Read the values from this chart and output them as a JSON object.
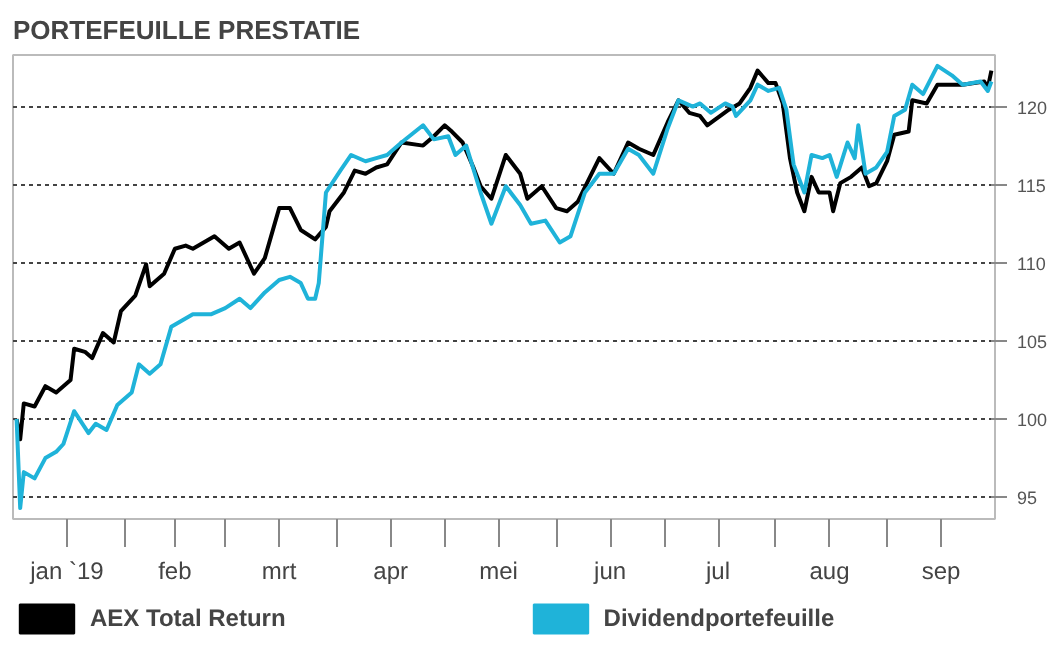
{
  "chart_data": {
    "type": "line",
    "title": "PORTEFEUILLE PRESTATIE",
    "xlim": [
      "2019-01-01",
      "2019-10-01"
    ],
    "ylim": [
      93.6,
      123.3
    ],
    "xticks": [
      {
        "value": "2019-01-16",
        "label": "jan `19"
      },
      {
        "value": "2019-02-01",
        "label": null
      },
      {
        "value": "2019-02-15",
        "label": "feb"
      },
      {
        "value": "2019-03-01",
        "label": null
      },
      {
        "value": "2019-03-16",
        "label": "mrt"
      },
      {
        "value": "2019-04-01",
        "label": null
      },
      {
        "value": "2019-04-16",
        "label": "apr"
      },
      {
        "value": "2019-05-01",
        "label": null
      },
      {
        "value": "2019-05-16",
        "label": "mei"
      },
      {
        "value": "2019-06-01",
        "label": null
      },
      {
        "value": "2019-06-16",
        "label": "jun"
      },
      {
        "value": "2019-07-01",
        "label": null
      },
      {
        "value": "2019-07-16",
        "label": "jul"
      },
      {
        "value": "2019-08-01",
        "label": null
      },
      {
        "value": "2019-08-16",
        "label": "aug"
      },
      {
        "value": "2019-09-01",
        "label": null
      },
      {
        "value": "2019-09-16",
        "label": "sep"
      }
    ],
    "yticks": [
      95,
      100,
      105,
      110,
      115,
      120
    ],
    "grid": "y",
    "legend": "bottom",
    "marker": "none",
    "line_style": "solid",
    "series": [
      {
        "name": "AEX Total Return",
        "color": "#000000",
        "x": [
          "2019-01-02",
          "2019-01-03",
          "2019-01-04",
          "2019-01-07",
          "2019-01-10",
          "2019-01-13",
          "2019-01-17",
          "2019-01-18",
          "2019-01-21",
          "2019-01-23",
          "2019-01-26",
          "2019-01-29",
          "2019-01-31",
          "2019-02-04",
          "2019-02-07",
          "2019-02-08",
          "2019-02-12",
          "2019-02-15",
          "2019-02-18",
          "2019-02-20",
          "2019-02-26",
          "2019-03-02",
          "2019-03-05",
          "2019-03-09",
          "2019-03-12",
          "2019-03-16",
          "2019-03-19",
          "2019-03-22",
          "2019-03-26",
          "2019-03-29",
          "2019-03-30",
          "2019-04-03",
          "2019-04-06",
          "2019-04-09",
          "2019-04-12",
          "2019-04-15",
          "2019-04-19",
          "2019-04-25",
          "2019-04-28",
          "2019-05-01",
          "2019-05-03",
          "2019-05-06",
          "2019-05-09",
          "2019-05-11",
          "2019-05-14",
          "2019-05-18",
          "2019-05-22",
          "2019-05-24",
          "2019-05-28",
          "2019-06-01",
          "2019-06-04",
          "2019-06-07",
          "2019-06-10",
          "2019-06-13",
          "2019-06-17",
          "2019-06-21",
          "2019-06-24",
          "2019-06-28",
          "2019-07-02",
          "2019-07-05",
          "2019-07-08",
          "2019-07-11",
          "2019-07-13",
          "2019-07-19",
          "2019-07-22",
          "2019-07-25",
          "2019-07-27",
          "2019-07-30",
          "2019-08-01",
          "2019-08-03",
          "2019-08-05",
          "2019-08-07",
          "2019-08-09",
          "2019-08-11",
          "2019-08-13",
          "2019-08-16",
          "2019-08-17",
          "2019-08-19",
          "2019-08-22",
          "2019-08-25",
          "2019-08-27",
          "2019-08-29",
          "2019-09-01",
          "2019-09-03",
          "2019-09-07",
          "2019-09-08",
          "2019-09-12",
          "2019-09-15",
          "2019-09-22",
          "2019-09-28",
          "2019-09-29",
          "2019-09-30"
        ],
        "values": [
          100.0,
          98.7,
          101.0,
          100.8,
          102.1,
          101.7,
          102.5,
          104.5,
          104.3,
          103.9,
          105.5,
          104.9,
          106.9,
          107.9,
          109.9,
          108.5,
          109.3,
          110.9,
          111.1,
          110.9,
          111.7,
          110.9,
          111.3,
          109.3,
          110.3,
          113.5,
          113.5,
          112.1,
          111.5,
          112.3,
          113.3,
          114.5,
          115.9,
          115.7,
          116.1,
          116.3,
          117.7,
          117.5,
          118.1,
          118.8,
          118.4,
          117.7,
          116.1,
          114.9,
          114.1,
          116.9,
          115.7,
          114.1,
          114.9,
          113.5,
          113.3,
          113.9,
          115.3,
          116.7,
          115.7,
          117.7,
          117.3,
          116.9,
          119.0,
          120.4,
          119.6,
          119.4,
          118.8,
          119.8,
          120.2,
          121.2,
          122.3,
          121.5,
          121.5,
          120.2,
          116.7,
          114.5,
          113.3,
          115.5,
          114.5,
          114.5,
          113.3,
          115.1,
          115.5,
          116.1,
          114.9,
          115.1,
          116.5,
          118.2,
          118.4,
          120.4,
          120.2,
          121.4,
          121.4,
          121.6,
          121.2,
          122.3
        ]
      },
      {
        "name": "Dividendportefeuille",
        "color": "#1fb3d9",
        "x": [
          "2019-01-02",
          "2019-01-03",
          "2019-01-04",
          "2019-01-07",
          "2019-01-10",
          "2019-01-13",
          "2019-01-15",
          "2019-01-18",
          "2019-01-22",
          "2019-01-24",
          "2019-01-27",
          "2019-01-30",
          "2019-02-03",
          "2019-02-05",
          "2019-02-08",
          "2019-02-11",
          "2019-02-14",
          "2019-02-17",
          "2019-02-20",
          "2019-02-25",
          "2019-03-01",
          "2019-03-05",
          "2019-03-08",
          "2019-03-12",
          "2019-03-16",
          "2019-03-19",
          "2019-03-22",
          "2019-03-24",
          "2019-03-26",
          "2019-03-27",
          "2019-03-29",
          "2019-04-02",
          "2019-04-05",
          "2019-04-09",
          "2019-04-12",
          "2019-04-15",
          "2019-04-19",
          "2019-04-25",
          "2019-04-28",
          "2019-05-02",
          "2019-05-04",
          "2019-05-07",
          "2019-05-11",
          "2019-05-14",
          "2019-05-18",
          "2019-05-22",
          "2019-05-25",
          "2019-05-29",
          "2019-06-02",
          "2019-06-05",
          "2019-06-09",
          "2019-06-13",
          "2019-06-17",
          "2019-06-21",
          "2019-06-24",
          "2019-06-28",
          "2019-07-02",
          "2019-07-05",
          "2019-07-09",
          "2019-07-11",
          "2019-07-14",
          "2019-07-18",
          "2019-07-20",
          "2019-07-21",
          "2019-07-25",
          "2019-07-27",
          "2019-07-30",
          "2019-08-02",
          "2019-08-04",
          "2019-08-06",
          "2019-08-09",
          "2019-08-11",
          "2019-08-14",
          "2019-08-16",
          "2019-08-18",
          "2019-08-21",
          "2019-08-23",
          "2019-08-24",
          "2019-08-26",
          "2019-08-29",
          "2019-09-01",
          "2019-09-03",
          "2019-09-06",
          "2019-09-08",
          "2019-09-11",
          "2019-09-15",
          "2019-09-19",
          "2019-09-22",
          "2019-09-27",
          "2019-09-29",
          "2019-09-30"
        ],
        "values": [
          100.0,
          94.3,
          96.6,
          96.2,
          97.5,
          97.9,
          98.4,
          100.5,
          99.1,
          99.7,
          99.3,
          100.9,
          101.7,
          103.5,
          102.9,
          103.5,
          105.9,
          106.3,
          106.7,
          106.7,
          107.1,
          107.7,
          107.1,
          108.1,
          108.9,
          109.1,
          108.7,
          107.7,
          107.7,
          108.7,
          114.5,
          115.9,
          116.9,
          116.5,
          116.7,
          116.9,
          117.7,
          118.8,
          117.9,
          118.1,
          116.9,
          117.5,
          114.5,
          112.5,
          114.9,
          113.7,
          112.5,
          112.7,
          111.3,
          111.7,
          114.5,
          115.7,
          115.7,
          117.3,
          116.9,
          115.7,
          118.6,
          120.4,
          120.0,
          120.2,
          119.6,
          120.2,
          120.0,
          119.4,
          120.4,
          121.4,
          121.0,
          121.2,
          119.8,
          116.3,
          114.5,
          116.9,
          116.7,
          116.9,
          115.5,
          117.7,
          116.7,
          118.8,
          115.7,
          116.1,
          117.1,
          119.4,
          119.8,
          121.4,
          120.8,
          122.6,
          122.0,
          121.4,
          121.6,
          121.0,
          121.6
        ]
      }
    ]
  }
}
